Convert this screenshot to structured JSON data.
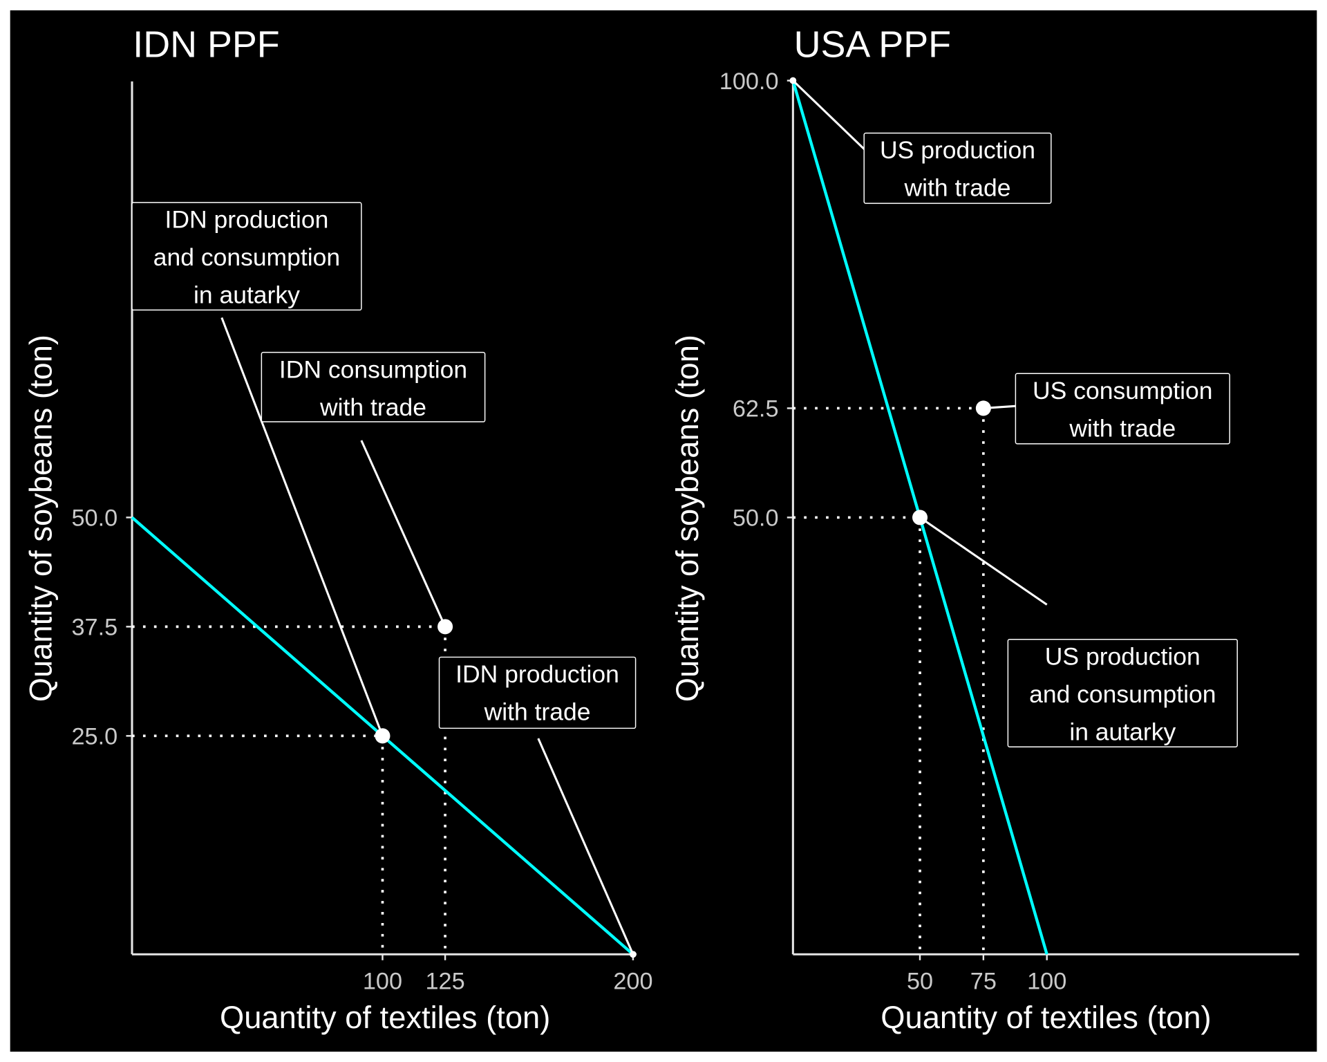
{
  "chart_data": [
    {
      "type": "line",
      "title": "IDN PPF",
      "xlabel": "Quantity of textiles (ton)",
      "ylabel": "Quantity of soybeans (ton)",
      "xlim": [
        0,
        200
      ],
      "ylim": [
        0,
        100
      ],
      "xticks": [
        "100",
        "125",
        "200"
      ],
      "xtick_values": [
        100,
        125,
        200
      ],
      "yticks": [
        "25.0",
        "37.5",
        "50.0"
      ],
      "ytick_values": [
        25,
        37.5,
        50
      ],
      "ppf": {
        "x": [
          0,
          200
        ],
        "y": [
          50,
          0
        ],
        "color": "#00ffff"
      },
      "points": [
        {
          "x": 100,
          "y": 25,
          "label": [
            "IDN production",
            "and consumption",
            "in autarky"
          ],
          "guides": true
        },
        {
          "x": 125,
          "y": 37.5,
          "label": [
            "IDN consumption",
            "with trade"
          ],
          "guides": true
        },
        {
          "x": 200,
          "y": 0,
          "label": [
            "IDN production",
            "with trade"
          ],
          "guides": false
        }
      ],
      "grid": false
    },
    {
      "type": "line",
      "title": "USA PPF",
      "xlabel": "Quantity of textiles (ton)",
      "ylabel": "Quantity of soybeans (ton)",
      "xlim": [
        0,
        200
      ],
      "ylim": [
        0,
        100
      ],
      "xticks": [
        "50",
        "75",
        "100"
      ],
      "xtick_values": [
        50,
        75,
        100
      ],
      "yticks": [
        "50.0",
        "62.5",
        "100.0"
      ],
      "ytick_values": [
        50,
        62.5,
        100
      ],
      "ppf": {
        "x": [
          0,
          100
        ],
        "y": [
          100,
          0
        ],
        "color": "#00ffff"
      },
      "points": [
        {
          "x": 0,
          "y": 100,
          "label": [
            "US production",
            "with trade"
          ],
          "guides": false
        },
        {
          "x": 75,
          "y": 62.5,
          "label": [
            "US consumption",
            "with trade"
          ],
          "guides": true
        },
        {
          "x": 50,
          "y": 50,
          "label": [
            "US production",
            "and consumption",
            "in autarky"
          ],
          "guides": true
        }
      ],
      "grid": false
    }
  ]
}
